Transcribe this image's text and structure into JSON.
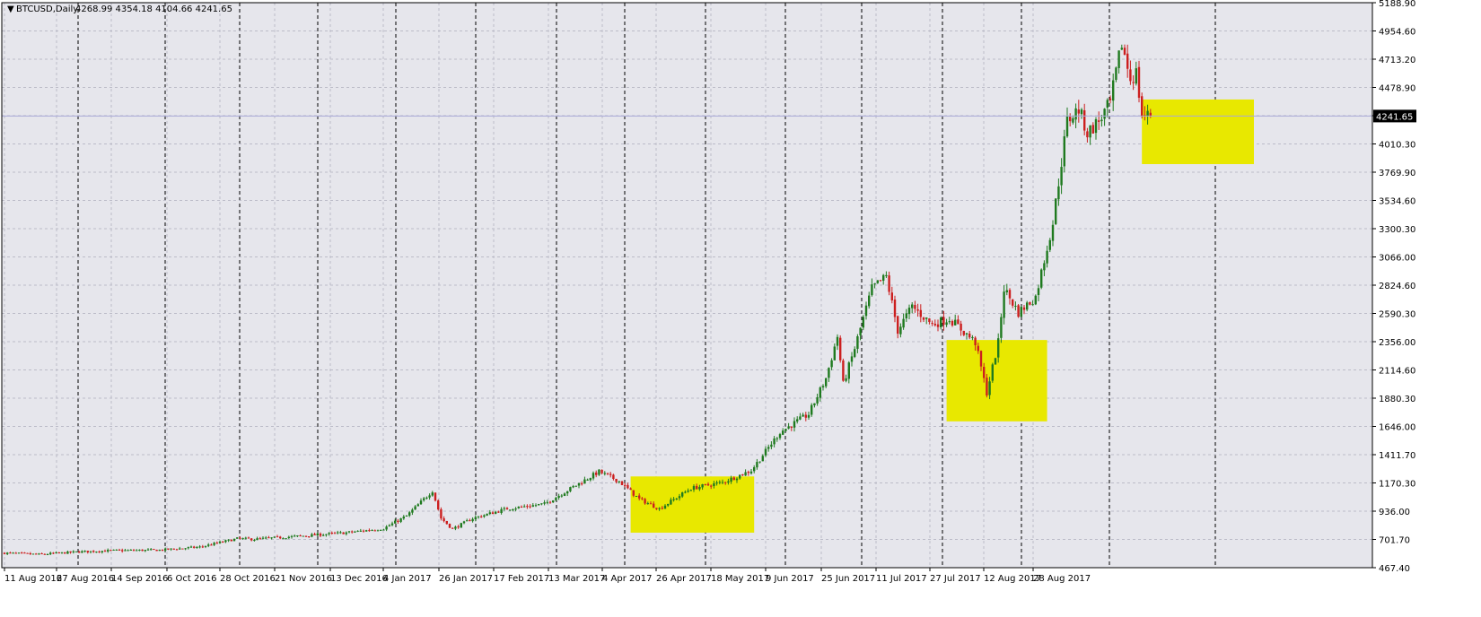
{
  "header": {
    "symbol": "BTCUSD,Daily",
    "ohlc": "4268.99 4354.18 4104.66 4241.65"
  },
  "colors": {
    "background": "#e6e6ec",
    "grid": "#bcbcc8",
    "bull": "#1f7a1f",
    "bear": "#cc1f1f",
    "doji": "#000000",
    "highlight": "#e8e800",
    "current_price_label": "#000000"
  },
  "chart_data": {
    "type": "candlestick",
    "title": "BTCUSD,Daily",
    "ylim": [
      467.4,
      5188.9
    ],
    "grid": true,
    "y_ticks": [
      "5188.90",
      "4954.60",
      "4713.20",
      "4478.90",
      "4241.65",
      "4010.30",
      "3769.90",
      "3534.60",
      "3300.30",
      "3066.00",
      "2824.60",
      "2590.30",
      "2356.00",
      "2114.60",
      "1880.30",
      "1646.00",
      "1411.70",
      "1170.30",
      "936.00",
      "701.70",
      "467.40"
    ],
    "x_ticks": [
      "11 Aug 2016",
      "27 Aug 2016",
      "14 Sep 2016",
      "6 Oct 2016",
      "28 Oct 2016",
      "21 Nov 2016",
      "13 Dec 2016",
      "4 Jan 2017",
      "26 Jan 2017",
      "17 Feb 2017",
      "13 Mar 2017",
      "4 Apr 2017",
      "26 Apr 2017",
      "18 May 2017",
      "9 Jun 2017",
      "25 Jun 2017",
      "11 Jul 2017",
      "27 Jul 2017",
      "12 Aug 2017",
      "28 Aug 2017"
    ],
    "current_price": 4241.65,
    "anchors": [
      {
        "date": "2016-08-08",
        "close": 590
      },
      {
        "date": "2016-08-20",
        "close": 578
      },
      {
        "date": "2016-09-03",
        "close": 600
      },
      {
        "date": "2016-09-14",
        "close": 610
      },
      {
        "date": "2016-10-01",
        "close": 615
      },
      {
        "date": "2016-10-15",
        "close": 640
      },
      {
        "date": "2016-10-28",
        "close": 710
      },
      {
        "date": "2016-11-03",
        "close": 705
      },
      {
        "date": "2016-11-21",
        "close": 735
      },
      {
        "date": "2016-12-05",
        "close": 760
      },
      {
        "date": "2016-12-18",
        "close": 795
      },
      {
        "date": "2016-12-26",
        "close": 900
      },
      {
        "date": "2017-01-04",
        "close": 1110
      },
      {
        "date": "2017-01-07",
        "close": 880
      },
      {
        "date": "2017-01-11",
        "close": 790
      },
      {
        "date": "2017-01-18",
        "close": 880
      },
      {
        "date": "2017-01-30",
        "close": 960
      },
      {
        "date": "2017-02-12",
        "close": 1000
      },
      {
        "date": "2017-02-24",
        "close": 1170
      },
      {
        "date": "2017-03-03",
        "close": 1270
      },
      {
        "date": "2017-03-10",
        "close": 1190
      },
      {
        "date": "2017-03-17",
        "close": 1040
      },
      {
        "date": "2017-03-24",
        "close": 960
      },
      {
        "date": "2017-04-04",
        "close": 1130
      },
      {
        "date": "2017-04-15",
        "close": 1180
      },
      {
        "date": "2017-04-25",
        "close": 1280
      },
      {
        "date": "2017-05-05",
        "close": 1600
      },
      {
        "date": "2017-05-15",
        "close": 1750
      },
      {
        "date": "2017-05-21",
        "close": 2050
      },
      {
        "date": "2017-05-25",
        "close": 2400
      },
      {
        "date": "2017-05-27",
        "close": 2000
      },
      {
        "date": "2017-05-31",
        "close": 2300
      },
      {
        "date": "2017-06-06",
        "close": 2800
      },
      {
        "date": "2017-06-11",
        "close": 2900
      },
      {
        "date": "2017-06-15",
        "close": 2450
      },
      {
        "date": "2017-06-20",
        "close": 2650
      },
      {
        "date": "2017-06-27",
        "close": 2500
      },
      {
        "date": "2017-07-03",
        "close": 2550
      },
      {
        "date": "2017-07-12",
        "close": 2350
      },
      {
        "date": "2017-07-16",
        "close": 1930
      },
      {
        "date": "2017-07-20",
        "close": 2350
      },
      {
        "date": "2017-07-22",
        "close": 2800
      },
      {
        "date": "2017-07-27",
        "close": 2600
      },
      {
        "date": "2017-08-02",
        "close": 2730
      },
      {
        "date": "2017-08-08",
        "close": 3350
      },
      {
        "date": "2017-08-13",
        "close": 4200
      },
      {
        "date": "2017-08-17",
        "close": 4300
      },
      {
        "date": "2017-08-20",
        "close": 4100
      },
      {
        "date": "2017-08-24",
        "close": 4200
      },
      {
        "date": "2017-08-28",
        "close": 4350
      },
      {
        "date": "2017-09-01",
        "close": 4850
      },
      {
        "date": "2017-09-04",
        "close": 4550
      },
      {
        "date": "2017-09-06",
        "close": 4600
      },
      {
        "date": "2017-09-08",
        "close": 4250
      },
      {
        "date": "2017-09-11",
        "close": 4241.65
      }
    ],
    "highlight_boxes": [
      {
        "from": "2017-03-14",
        "to": "2017-04-26",
        "low": 760,
        "high": 1230
      },
      {
        "from": "2017-07-02",
        "to": "2017-08-06",
        "low": 1690,
        "high": 2370
      },
      {
        "from": "2017-09-08",
        "to": "2017-10-17",
        "low": 3840,
        "high": 4380
      }
    ]
  }
}
